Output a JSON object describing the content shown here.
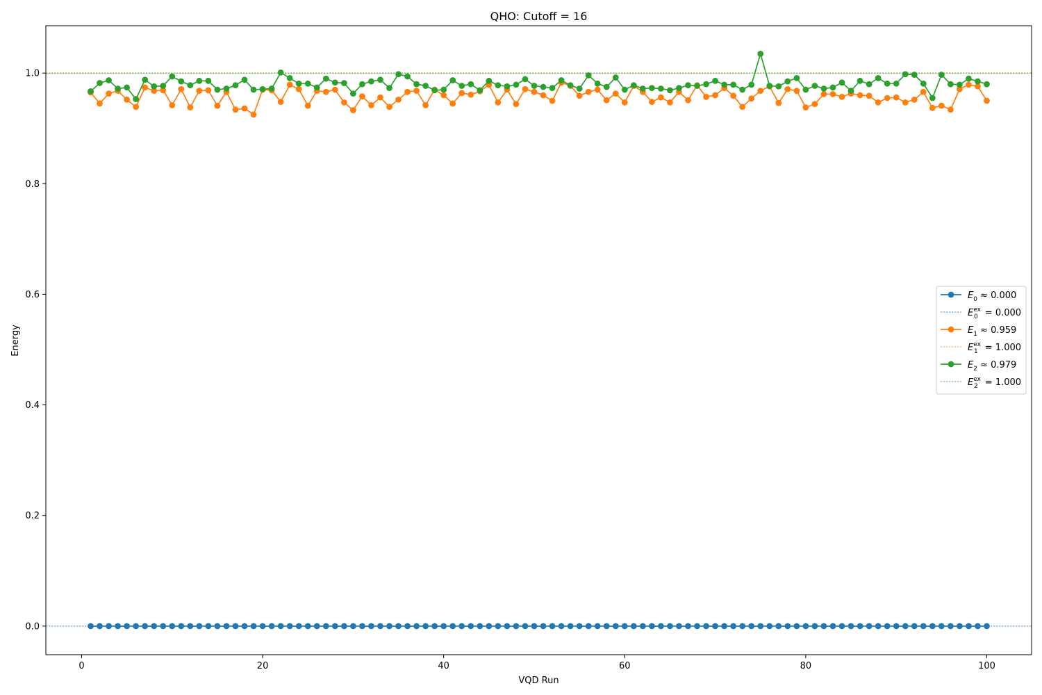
{
  "chart_data": {
    "type": "line",
    "title": "QHO: Cutoff = 16",
    "xlabel": "VQD Run",
    "ylabel": "Energy",
    "xlim": [
      -3.95,
      104.95
    ],
    "ylim": [
      -0.0517,
      1.0857
    ],
    "xticks": [
      0,
      20,
      40,
      60,
      80,
      100
    ],
    "yticks": [
      0.0,
      0.2,
      0.4,
      0.6,
      0.8,
      1.0
    ],
    "grid": false,
    "legend_position": "center-right",
    "x": [
      1,
      2,
      3,
      4,
      5,
      6,
      7,
      8,
      9,
      10,
      11,
      12,
      13,
      14,
      15,
      16,
      17,
      18,
      19,
      20,
      21,
      22,
      23,
      24,
      25,
      26,
      27,
      28,
      29,
      30,
      31,
      32,
      33,
      34,
      35,
      36,
      37,
      38,
      39,
      40,
      41,
      42,
      43,
      44,
      45,
      46,
      47,
      48,
      49,
      50,
      51,
      52,
      53,
      54,
      55,
      56,
      57,
      58,
      59,
      60,
      61,
      62,
      63,
      64,
      65,
      66,
      67,
      68,
      69,
      70,
      71,
      72,
      73,
      74,
      75,
      76,
      77,
      78,
      79,
      80,
      81,
      82,
      83,
      84,
      85,
      86,
      87,
      88,
      89,
      90,
      91,
      92,
      93,
      94,
      95,
      96,
      97,
      98,
      99,
      100
    ],
    "series": [
      {
        "name": "E0 ≈ 0.000",
        "color": "#1f77b4",
        "values": [
          0,
          0,
          0,
          0,
          0,
          0,
          0,
          0,
          0,
          0,
          0,
          0,
          0,
          0,
          0,
          0,
          0,
          0,
          0,
          0,
          0,
          0,
          0,
          0,
          0,
          0,
          0,
          0,
          0,
          0,
          0,
          0,
          0,
          0,
          0,
          0,
          0,
          0,
          0,
          0,
          0,
          0,
          0,
          0,
          0,
          0,
          0,
          0,
          0,
          0,
          0,
          0,
          0,
          0,
          0,
          0,
          0,
          0,
          0,
          0,
          0,
          0,
          0,
          0,
          0,
          0,
          0,
          0,
          0,
          0,
          0,
          0,
          0,
          0,
          0,
          0,
          0,
          0,
          0,
          0,
          0,
          0,
          0,
          0,
          0,
          0,
          0,
          0,
          0,
          0,
          0,
          0,
          0,
          0,
          0,
          0,
          0,
          0,
          0,
          0
        ]
      },
      {
        "name": "E1 ≈ 0.959",
        "color": "#ff7f0e",
        "values": [
          0.965,
          0.945,
          0.963,
          0.968,
          0.952,
          0.939,
          0.974,
          0.968,
          0.969,
          0.942,
          0.971,
          0.938,
          0.968,
          0.969,
          0.941,
          0.966,
          0.934,
          0.936,
          0.925,
          0.97,
          0.969,
          0.948,
          0.979,
          0.971,
          0.941,
          0.968,
          0.966,
          0.97,
          0.947,
          0.933,
          0.958,
          0.942,
          0.956,
          0.939,
          0.952,
          0.966,
          0.968,
          0.942,
          0.97,
          0.96,
          0.945,
          0.964,
          0.961,
          0.967,
          0.979,
          0.947,
          0.97,
          0.944,
          0.971,
          0.966,
          0.96,
          0.95,
          0.983,
          0.977,
          0.959,
          0.966,
          0.97,
          0.951,
          0.963,
          0.947,
          0.977,
          0.966,
          0.948,
          0.956,
          0.947,
          0.966,
          0.951,
          0.978,
          0.957,
          0.96,
          0.973,
          0.959,
          0.939,
          0.954,
          0.968,
          0.976,
          0.946,
          0.971,
          0.968,
          0.938,
          0.944,
          0.962,
          0.962,
          0.957,
          0.963,
          0.96,
          0.959,
          0.947,
          0.955,
          0.956,
          0.947,
          0.952,
          0.966,
          0.937,
          0.941,
          0.934,
          0.971,
          0.979,
          0.976,
          0.95
        ]
      },
      {
        "name": "E2 ≈ 0.979",
        "color": "#2ca02c",
        "values": [
          0.967,
          0.982,
          0.987,
          0.972,
          0.974,
          0.953,
          0.988,
          0.976,
          0.977,
          0.994,
          0.985,
          0.978,
          0.986,
          0.986,
          0.97,
          0.972,
          0.978,
          0.988,
          0.97,
          0.971,
          0.972,
          1.001,
          0.991,
          0.981,
          0.981,
          0.974,
          0.99,
          0.983,
          0.982,
          0.963,
          0.98,
          0.985,
          0.988,
          0.973,
          0.998,
          0.994,
          0.98,
          0.977,
          0.969,
          0.97,
          0.987,
          0.977,
          0.98,
          0.969,
          0.986,
          0.978,
          0.976,
          0.979,
          0.989,
          0.977,
          0.975,
          0.973,
          0.987,
          0.978,
          0.972,
          0.996,
          0.981,
          0.975,
          0.992,
          0.97,
          0.978,
          0.972,
          0.973,
          0.972,
          0.969,
          0.973,
          0.978,
          0.977,
          0.98,
          0.986,
          0.979,
          0.979,
          0.97,
          0.979,
          1.035,
          0.977,
          0.976,
          0.985,
          0.991,
          0.97,
          0.977,
          0.972,
          0.974,
          0.983,
          0.968,
          0.986,
          0.98,
          0.991,
          0.981,
          0.981,
          0.998,
          0.997,
          0.981,
          0.955,
          0.997,
          0.98,
          0.979,
          0.99,
          0.985,
          0.98
        ]
      }
    ],
    "reference_lines": [
      {
        "name": "E0ex = 0.000",
        "color": "#1f77b4",
        "value": 0.0
      },
      {
        "name": "E1ex = 1.000",
        "color": "#ff7f0e",
        "value": 1.0
      },
      {
        "name": "E2ex = 1.000",
        "color": "#2ca02c",
        "value": 1.0
      }
    ],
    "legend": [
      {
        "sym": "E",
        "sub": "0",
        "sup": "",
        "rest": " ≈ 0.000",
        "color": "#1f77b4",
        "kind": "marker-line"
      },
      {
        "sym": "E",
        "sub": "0",
        "sup": "ex",
        "rest": " = 0.000",
        "color": "#1f77b4",
        "kind": "dashed"
      },
      {
        "sym": "E",
        "sub": "1",
        "sup": "",
        "rest": " ≈ 0.959",
        "color": "#ff7f0e",
        "kind": "marker-line"
      },
      {
        "sym": "E",
        "sub": "1",
        "sup": "ex",
        "rest": " = 1.000",
        "color": "#ff7f0e",
        "kind": "dashed"
      },
      {
        "sym": "E",
        "sub": "2",
        "sup": "",
        "rest": " ≈ 0.979",
        "color": "#2ca02c",
        "kind": "marker-line"
      },
      {
        "sym": "E",
        "sub": "2",
        "sup": "ex",
        "rest": " = 1.000",
        "color": "#2ca02c",
        "kind": "dashed"
      }
    ]
  }
}
